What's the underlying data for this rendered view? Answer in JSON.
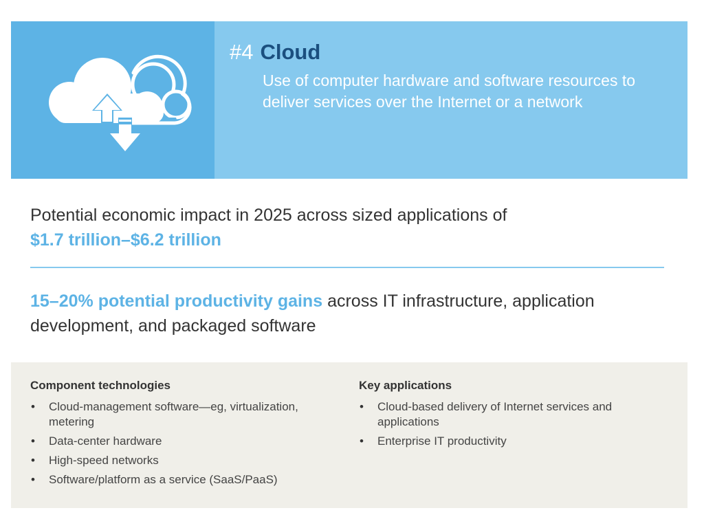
{
  "header": {
    "number": "#4",
    "title": "Cloud",
    "description": "Use of computer hardware and software resources to deliver services over the Internet or a network",
    "icon": "cloud-upload-download-icon",
    "colors": {
      "panel": "#86c9ee",
      "icon_panel": "#5db3e5",
      "title": "#1b4f7f"
    }
  },
  "impact": {
    "label": "Potential economic impact in 2025 across sized applications of",
    "value": "$1.7 trillion–$6.2 trillion"
  },
  "productivity": {
    "highlight": "15–20% potential productivity gains",
    "text": " across IT infrastructure, application development, and packaged software"
  },
  "component_technologies": {
    "title": "Component technologies",
    "items": [
      "Cloud-management software—eg, virtualization, metering",
      "Data-center hardware",
      "High-speed networks",
      "Software/platform as a service (SaaS/PaaS)"
    ]
  },
  "key_applications": {
    "title": "Key applications",
    "items": [
      "Cloud-based delivery of Internet services and applications",
      "Enterprise IT productivity"
    ]
  },
  "bullet_glyph": "•"
}
